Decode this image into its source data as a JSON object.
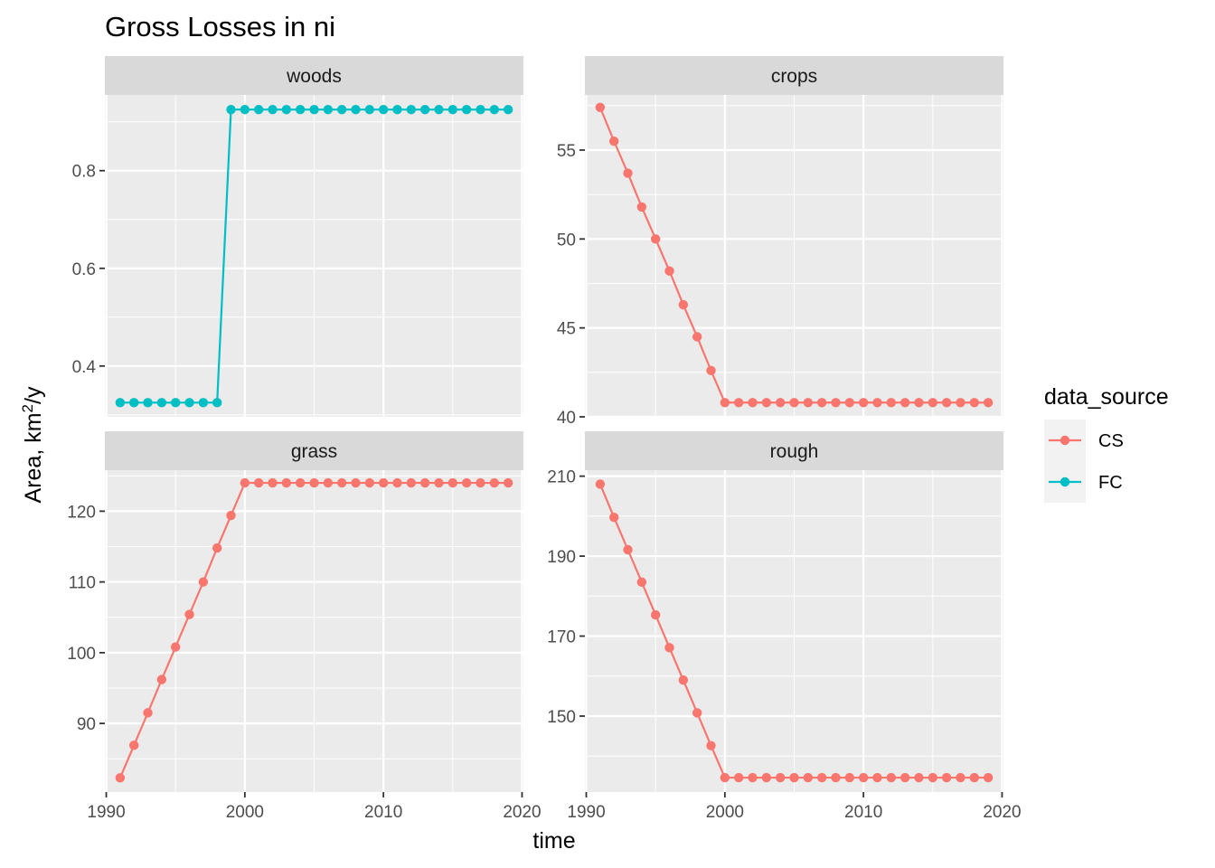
{
  "chart_data": {
    "type": "line",
    "title": "Gross Losses in ni",
    "xlabel": "time",
    "ylabel_main": "Area,  km",
    "ylabel_sup": "2",
    "ylabel_tail": "/y",
    "colors": {
      "CS": "#F8766D",
      "FC": "#00BFC4"
    },
    "legend": {
      "title": "data_source",
      "placement": "right",
      "entries": [
        {
          "name": "CS",
          "color": "#F8766D"
        },
        {
          "name": "FC",
          "color": "#00BFC4"
        }
      ]
    },
    "x_ticks": [
      1990,
      2000,
      2010,
      2020
    ],
    "panels": [
      {
        "name": "woods",
        "series": "FC",
        "xlim": [
          1989.9,
          2020.1
        ],
        "ylim": [
          0.296,
          0.955
        ],
        "y_ticks": [
          0.4,
          0.6,
          0.8
        ],
        "y_tick_labels": [
          "0.4",
          "0.6",
          "0.8"
        ],
        "x": [
          1991,
          1992,
          1993,
          1994,
          1995,
          1996,
          1997,
          1998,
          1999,
          2000,
          2001,
          2002,
          2003,
          2004,
          2005,
          2006,
          2007,
          2008,
          2009,
          2010,
          2011,
          2012,
          2013,
          2014,
          2015,
          2016,
          2017,
          2018,
          2019
        ],
        "y": [
          0.325,
          0.325,
          0.325,
          0.325,
          0.325,
          0.325,
          0.325,
          0.325,
          0.925,
          0.925,
          0.925,
          0.925,
          0.925,
          0.925,
          0.925,
          0.925,
          0.925,
          0.925,
          0.925,
          0.925,
          0.925,
          0.925,
          0.925,
          0.925,
          0.925,
          0.925,
          0.925,
          0.925,
          0.925
        ]
      },
      {
        "name": "crops",
        "series": "CS",
        "xlim": [
          1989.9,
          2020.1
        ],
        "ylim": [
          40.0,
          58.1
        ],
        "y_ticks": [
          40,
          45,
          50,
          55
        ],
        "y_tick_labels": [
          "40",
          "45",
          "50",
          "55"
        ],
        "x": [
          1991,
          1992,
          1993,
          1994,
          1995,
          1996,
          1997,
          1998,
          1999,
          2000,
          2001,
          2002,
          2003,
          2004,
          2005,
          2006,
          2007,
          2008,
          2009,
          2010,
          2011,
          2012,
          2013,
          2014,
          2015,
          2016,
          2017,
          2018,
          2019
        ],
        "y": [
          57.4,
          55.5,
          53.7,
          51.8,
          50.0,
          48.2,
          46.3,
          44.5,
          42.6,
          40.8,
          40.8,
          40.8,
          40.8,
          40.8,
          40.8,
          40.8,
          40.8,
          40.8,
          40.8,
          40.8,
          40.8,
          40.8,
          40.8,
          40.8,
          40.8,
          40.8,
          40.8,
          40.8,
          40.8
        ]
      },
      {
        "name": "grass",
        "series": "CS",
        "xlim": [
          1989.9,
          2020.1
        ],
        "ylim": [
          80.3,
          125.8
        ],
        "y_ticks": [
          90,
          100,
          110,
          120
        ],
        "y_tick_labels": [
          "90",
          "100",
          "110",
          "120"
        ],
        "x": [
          1991,
          1992,
          1993,
          1994,
          1995,
          1996,
          1997,
          1998,
          1999,
          2000,
          2001,
          2002,
          2003,
          2004,
          2005,
          2006,
          2007,
          2008,
          2009,
          2010,
          2011,
          2012,
          2013,
          2014,
          2015,
          2016,
          2017,
          2018,
          2019
        ],
        "y": [
          82.3,
          86.9,
          91.5,
          96.2,
          100.8,
          105.4,
          110.0,
          114.8,
          119.4,
          124.0,
          124.0,
          124.0,
          124.0,
          124.0,
          124.0,
          124.0,
          124.0,
          124.0,
          124.0,
          124.0,
          124.0,
          124.0,
          124.0,
          124.0,
          124.0,
          124.0,
          124.0,
          124.0,
          124.0
        ]
      },
      {
        "name": "rough",
        "series": "CS",
        "xlim": [
          1989.9,
          2020.1
        ],
        "ylim": [
          131.0,
          211.5
        ],
        "y_ticks": [
          150,
          170,
          190,
          210
        ],
        "y_tick_labels": [
          "150",
          "170",
          "190",
          "210"
        ],
        "x": [
          1991,
          1992,
          1993,
          1994,
          1995,
          1996,
          1997,
          1998,
          1999,
          2000,
          2001,
          2002,
          2003,
          2004,
          2005,
          2006,
          2007,
          2008,
          2009,
          2010,
          2011,
          2012,
          2013,
          2014,
          2015,
          2016,
          2017,
          2018,
          2019
        ],
        "y": [
          208.0,
          199.7,
          191.6,
          183.5,
          175.3,
          167.1,
          159.0,
          150.8,
          142.6,
          134.6,
          134.6,
          134.6,
          134.6,
          134.6,
          134.6,
          134.6,
          134.6,
          134.6,
          134.6,
          134.6,
          134.6,
          134.6,
          134.6,
          134.6,
          134.6,
          134.6,
          134.6,
          134.6,
          134.6
        ]
      }
    ]
  }
}
